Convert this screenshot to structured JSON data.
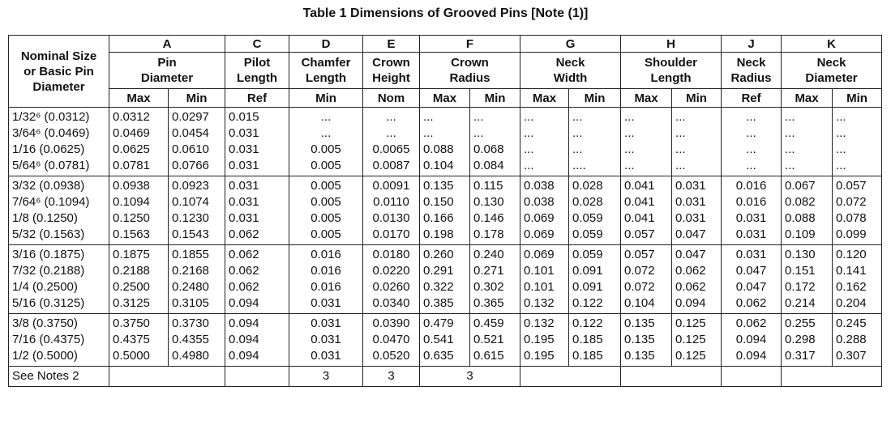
{
  "title": "Table 1 Dimensions of Grooved Pins [Note (1)]",
  "row_header": "Nominal Size\nor Basic Pin\nDiameter",
  "columns": [
    {
      "letter": "A",
      "name": "Pin\nDiameter",
      "subs": [
        "Max",
        "Min"
      ]
    },
    {
      "letter": "C",
      "name": "Pilot\nLength",
      "subs": [
        "Ref"
      ]
    },
    {
      "letter": "D",
      "name": "Chamfer\nLength",
      "subs": [
        "Min"
      ]
    },
    {
      "letter": "E",
      "name": "Crown\nHeight",
      "subs": [
        "Nom"
      ]
    },
    {
      "letter": "F",
      "name": "Crown\nRadius",
      "subs": [
        "Max",
        "Min"
      ]
    },
    {
      "letter": "G",
      "name": "Neck\nWidth",
      "subs": [
        "Max",
        "Min"
      ]
    },
    {
      "letter": "H",
      "name": "Shoulder\nLength",
      "subs": [
        "Max",
        "Min"
      ]
    },
    {
      "letter": "J",
      "name": "Neck\nRadius",
      "subs": [
        "Ref"
      ]
    },
    {
      "letter": "K",
      "name": "Neck\nDiameter",
      "subs": [
        "Max",
        "Min"
      ]
    }
  ],
  "groups": [
    [
      [
        "1/32⁶ (0.0312)",
        "0.0312",
        "0.0297",
        "0.015",
        "...",
        "...",
        "...",
        "...",
        "...",
        "...",
        "...",
        "...",
        "...",
        "...",
        "..."
      ],
      [
        "3/64⁶ (0.0469)",
        "0.0469",
        "0.0454",
        "0.031",
        "...",
        "...",
        "...",
        "...",
        "...",
        "...",
        "...",
        "...",
        "...",
        "...",
        "..."
      ],
      [
        "1/16 (0.0625)",
        "0.0625",
        "0.0610",
        "0.031",
        "0.005",
        "0.0065",
        "0.088",
        "0.068",
        "...",
        "...",
        "...",
        "...",
        "...",
        "...",
        "..."
      ],
      [
        "5/64⁶ (0.0781)",
        "0.0781",
        "0.0766",
        "0.031",
        "0.005",
        "0.0087",
        "0.104",
        "0.084",
        "...",
        "....",
        "...",
        "...",
        "...",
        "...",
        "..."
      ]
    ],
    [
      [
        "3/32 (0.0938)",
        "0.0938",
        "0.0923",
        "0.031",
        "0.005",
        "0.0091",
        "0.135",
        "0.115",
        "0.038",
        "0.028",
        "0.041",
        "0.031",
        "0.016",
        "0.067",
        "0.057"
      ],
      [
        "7/64⁶ (0.1094)",
        "0.1094",
        "0.1074",
        "0.031",
        "0.005",
        "0.0110",
        "0.150",
        "0.130",
        "0.038",
        "0.028",
        "0.041",
        "0.031",
        "0.016",
        "0.082",
        "0.072"
      ],
      [
        "1/8 (0.1250)",
        "0.1250",
        "0.1230",
        "0.031",
        "0.005",
        "0.0130",
        "0.166",
        "0.146",
        "0.069",
        "0.059",
        "0.041",
        "0.031",
        "0.031",
        "0.088",
        "0.078"
      ],
      [
        "5/32 (0.1563)",
        "0.1563",
        "0.1543",
        "0.062",
        "0.005",
        "0.0170",
        "0.198",
        "0.178",
        "0.069",
        "0.059",
        "0.057",
        "0.047",
        "0.031",
        "0.109",
        "0.099"
      ]
    ],
    [
      [
        "3/16 (0.1875)",
        "0.1875",
        "0.1855",
        "0.062",
        "0.016",
        "0.0180",
        "0.260",
        "0.240",
        "0.069",
        "0.059",
        "0.057",
        "0.047",
        "0.031",
        "0.130",
        "0.120"
      ],
      [
        "7/32 (0.2188)",
        "0.2188",
        "0.2168",
        "0.062",
        "0.016",
        "0.0220",
        "0.291",
        "0.271",
        "0.101",
        "0.091",
        "0.072",
        "0.062",
        "0.047",
        "0.151",
        "0.141"
      ],
      [
        "1/4 (0.2500)",
        "0.2500",
        "0.2480",
        "0.062",
        "0.016",
        "0.0260",
        "0.322",
        "0.302",
        "0.101",
        "0.091",
        "0.072",
        "0.062",
        "0.047",
        "0.172",
        "0.162"
      ],
      [
        "5/16 (0.3125)",
        "0.3125",
        "0.3105",
        "0.094",
        "0.031",
        "0.0340",
        "0.385",
        "0.365",
        "0.132",
        "0.122",
        "0.104",
        "0.094",
        "0.062",
        "0.214",
        "0.204"
      ]
    ],
    [
      [
        "3/8 (0.3750)",
        "0.3750",
        "0.3730",
        "0.094",
        "0.031",
        "0.0390",
        "0.479",
        "0.459",
        "0.132",
        "0.122",
        "0.135",
        "0.125",
        "0.062",
        "0.255",
        "0.245"
      ],
      [
        "7/16 (0.4375)",
        "0.4375",
        "0.4355",
        "0.094",
        "0.031",
        "0.0470",
        "0.541",
        "0.521",
        "0.195",
        "0.185",
        "0.135",
        "0.125",
        "0.094",
        "0.298",
        "0.288"
      ],
      [
        "1/2 (0.5000)",
        "0.5000",
        "0.4980",
        "0.094",
        "0.031",
        "0.0520",
        "0.635",
        "0.615",
        "0.195",
        "0.185",
        "0.135",
        "0.125",
        "0.094",
        "0.317",
        "0.307"
      ]
    ]
  ],
  "notes_row": {
    "label": "See Notes 2",
    "D": "3",
    "E": "3",
    "F": "3"
  }
}
